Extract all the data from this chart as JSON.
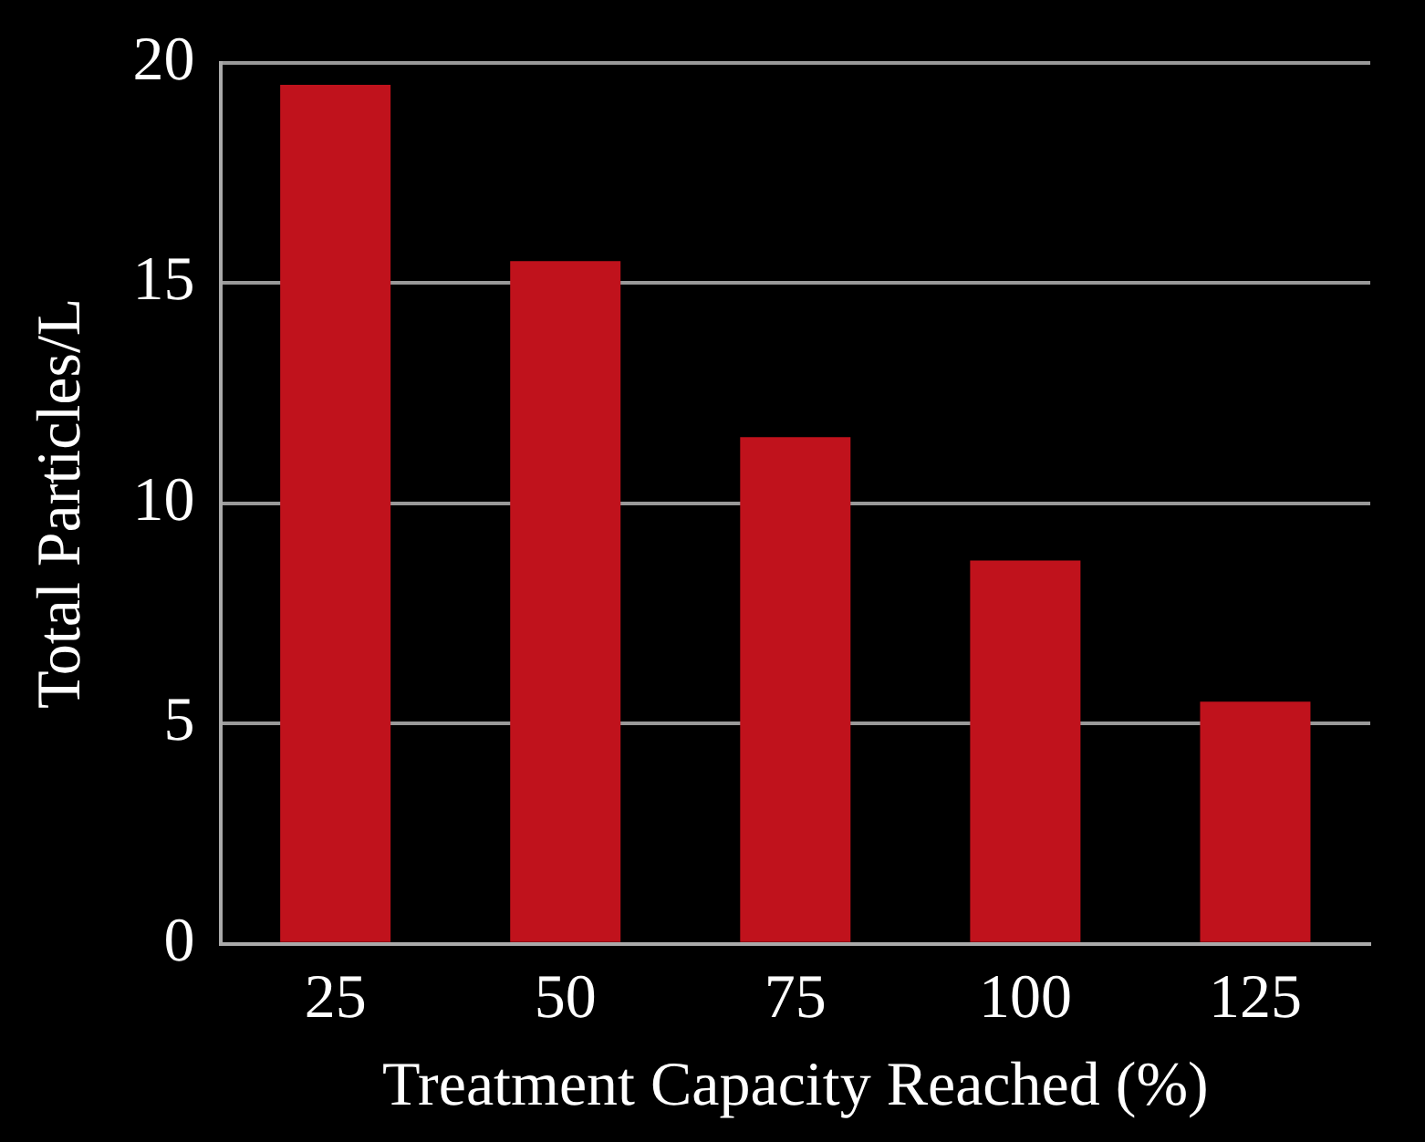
{
  "chart_data": {
    "type": "bar",
    "xlabel": "Treatment Capacity Reached (%)",
    "ylabel": "Total Particles/L",
    "categories": [
      "25",
      "50",
      "75",
      "100",
      "125"
    ],
    "series": [
      {
        "color": "#c0121c",
        "values": [
          19.5,
          15.5,
          11.5,
          8.7,
          5.5
        ]
      }
    ],
    "ylim": [
      0,
      20
    ],
    "yticks": [
      0,
      5,
      10,
      15,
      20
    ],
    "grid": "y",
    "legend": false
  }
}
